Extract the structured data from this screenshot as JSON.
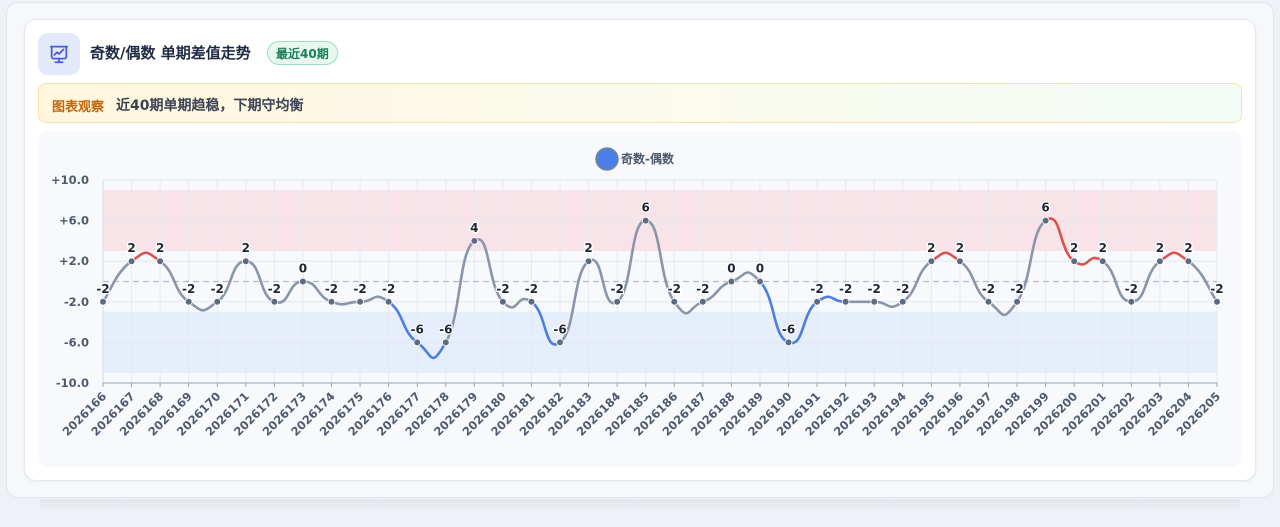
{
  "header": {
    "title": "奇数/偶数 单期差值走势",
    "badge": "最近40期",
    "icon": "presentation-chart-icon"
  },
  "notice": {
    "tag": "图表观察",
    "text": "近40期单期趋稳，下期守均衡"
  },
  "colors": {
    "series_line": "#8a96a8",
    "rising": "#d9534f",
    "falling": "#4a7fe0",
    "upper_band": "#f8e4e8",
    "lower_band": "#e6edfb",
    "marker": "#5d6b80",
    "legend_dot": "#4a7fe8",
    "icon": "#4b5bd6"
  },
  "chart_data": {
    "type": "line",
    "title": "",
    "xlabel": "",
    "ylabel": "",
    "legend_position": "top-center",
    "grid": true,
    "ylim": [
      -10,
      10
    ],
    "y_ticks": [
      10,
      6,
      2,
      -2,
      -6,
      -10
    ],
    "y_tick_labels": [
      "+10.0",
      "+6.0",
      "+2.0",
      "-2.0",
      "-6.0",
      "-10.0"
    ],
    "bands": [
      {
        "from": 3,
        "to": 9,
        "color": "#f8e4e8"
      },
      {
        "from": -9,
        "to": -3,
        "color": "#e6edfb"
      }
    ],
    "baseline": 0,
    "categories": [
      "2026166",
      "2026167",
      "2026168",
      "2026169",
      "2026170",
      "2026171",
      "2026172",
      "2026173",
      "2026174",
      "2026175",
      "2026176",
      "2026177",
      "2026178",
      "2026179",
      "2026180",
      "2026181",
      "2026182",
      "2026183",
      "2026184",
      "2026185",
      "2026186",
      "2026187",
      "2026188",
      "2026189",
      "2026190",
      "2026191",
      "2026192",
      "2026193",
      "2026194",
      "2026195",
      "2026196",
      "2026197",
      "2026198",
      "2026199",
      "2026200",
      "2026201",
      "2026202",
      "2026203",
      "2026204",
      "2026205"
    ],
    "series": [
      {
        "name": "奇数-偶数",
        "values": [
          -2,
          2,
          2,
          -2,
          -2,
          2,
          -2,
          0,
          -2,
          -2,
          -2,
          -6,
          -6,
          4,
          -2,
          -2,
          -6,
          2,
          -2,
          6,
          -2,
          -2,
          0,
          0,
          -6,
          -2,
          -2,
          -2,
          -2,
          2,
          2,
          -2,
          -2,
          6,
          2,
          2,
          -2,
          2,
          2,
          -2
        ]
      }
    ]
  }
}
